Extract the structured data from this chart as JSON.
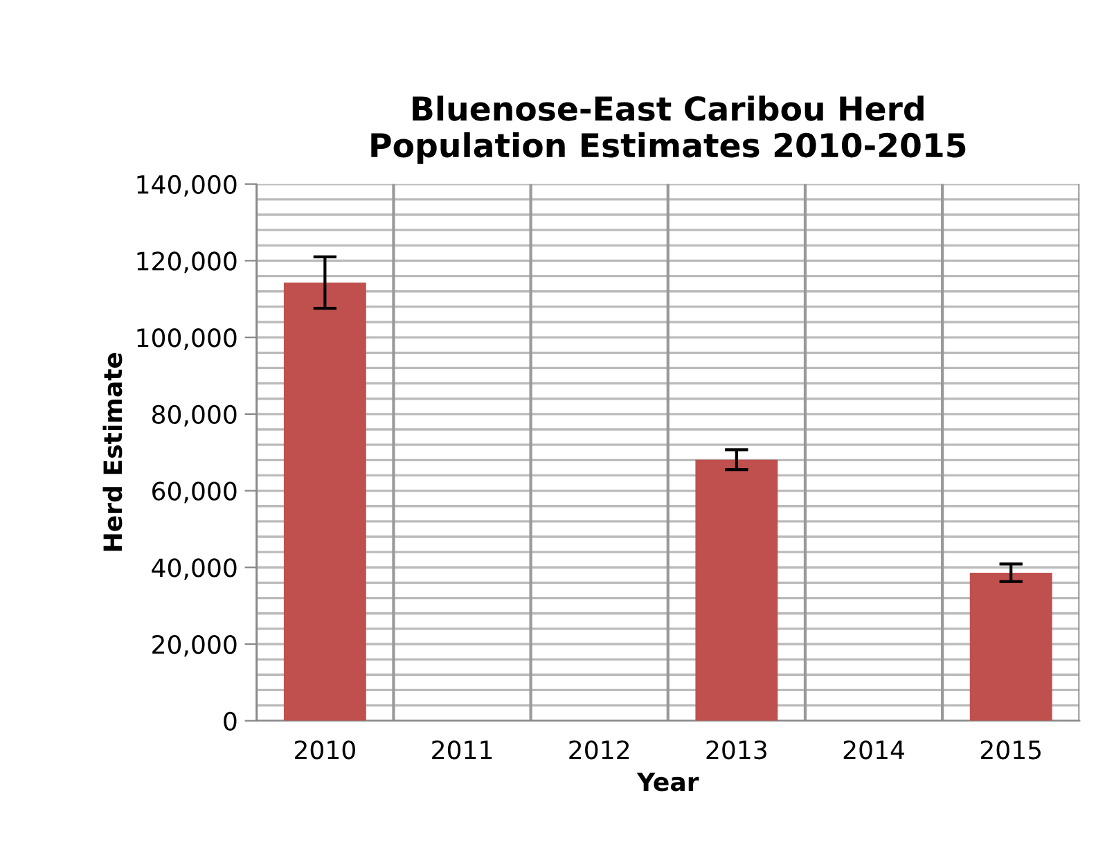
{
  "chart_data": {
    "type": "bar",
    "title": "Bluenose-East Caribou Herd\nPopulation Estimates 2010-2015",
    "xlabel": "Year",
    "ylabel": "Herd Estimate",
    "categories": [
      "2010",
      "2011",
      "2012",
      "2013",
      "2014",
      "2015"
    ],
    "values": [
      114300,
      null,
      null,
      68100,
      null,
      38600
    ],
    "errors": [
      6700,
      null,
      null,
      2600,
      null,
      2300
    ],
    "color": "#c0504d",
    "ylim": [
      0,
      140000
    ],
    "yticks": [
      {
        "value": 0,
        "label": "0"
      },
      {
        "value": 20000,
        "label": "20,000"
      },
      {
        "value": 40000,
        "label": "40,000"
      },
      {
        "value": 60000,
        "label": "60,000"
      },
      {
        "value": 80000,
        "label": "80,000"
      },
      {
        "value": 100000,
        "label": "100,000"
      },
      {
        "value": 120000,
        "label": "120,000"
      },
      {
        "value": 140000,
        "label": "140,000"
      }
    ],
    "grid": true,
    "legend": false
  }
}
